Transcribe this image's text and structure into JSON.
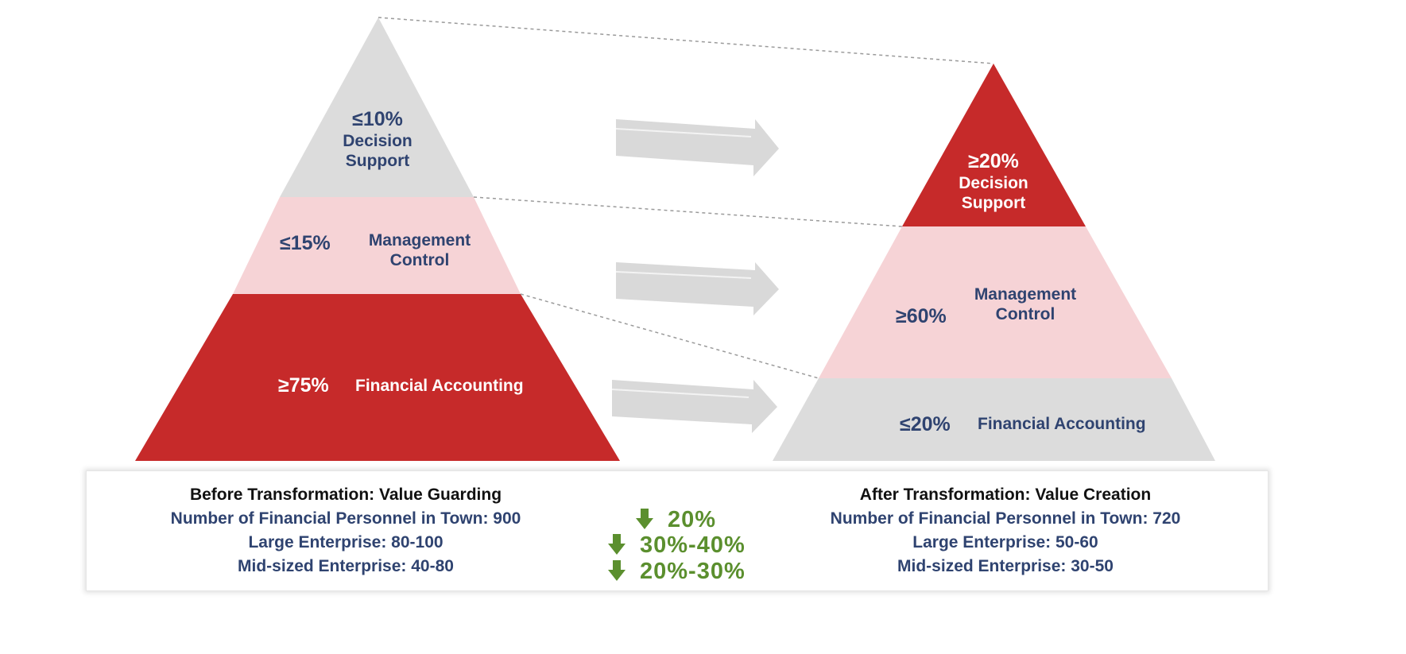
{
  "before": {
    "top": {
      "pct": "≤10%",
      "line1": "Decision",
      "line2": "Support"
    },
    "middle": {
      "pct": "≤15%",
      "line1": "Management",
      "line2": "Control"
    },
    "bottom": {
      "pct": "≥75%",
      "label": "Financial Accounting"
    },
    "title": "Before Transformation: Value Guarding",
    "rows": [
      "Number of Financial Personnel in Town: 900",
      "Large Enterprise: 80-100",
      "Mid-sized Enterprise: 40-80"
    ]
  },
  "after": {
    "top": {
      "pct": "≥20%",
      "line1": "Decision",
      "line2": "Support"
    },
    "middle": {
      "pct": "≥60%",
      "line1": "Management",
      "line2": "Control"
    },
    "bottom": {
      "pct": "≤20%",
      "label": "Financial Accounting"
    },
    "title": "After Transformation: Value Creation",
    "rows": [
      "Number of Financial Personnel in Town: 720",
      "Large Enterprise: 50-60",
      "Mid-sized Enterprise: 30-50"
    ]
  },
  "reductions": [
    "20%",
    "30%-40%",
    "20%-30%"
  ],
  "colors": {
    "red": "#c62a2a",
    "pink": "#f6d3d6",
    "gray": "#dcdcdc",
    "navy": "#2f4370",
    "green": "#5b8f2e",
    "arrow": "#d9d9d9"
  }
}
